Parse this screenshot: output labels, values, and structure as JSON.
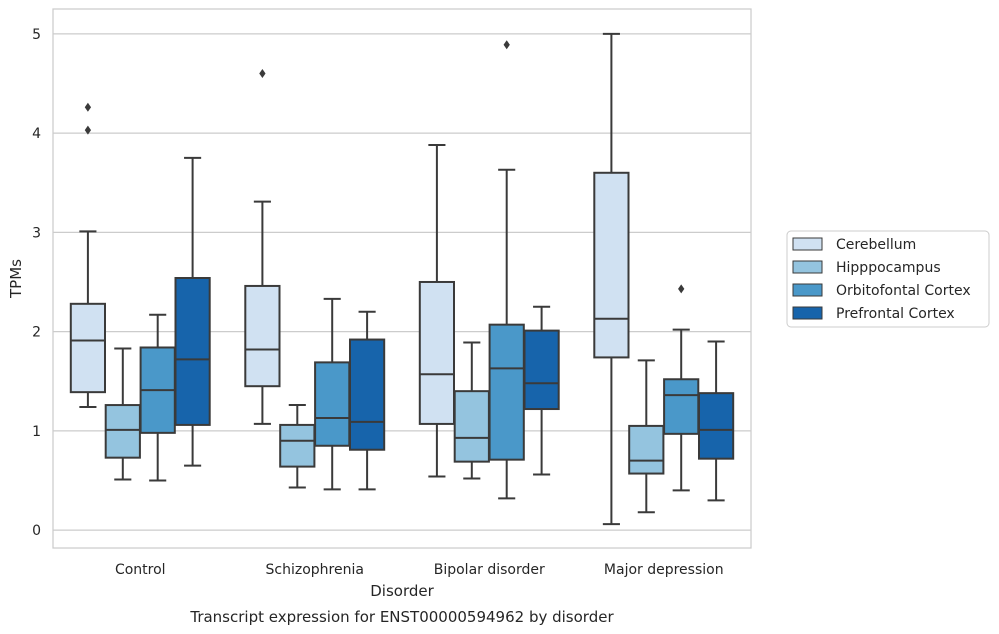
{
  "chart_data": {
    "type": "boxplot",
    "title": "Transcript expression for ENST00000594962 by disorder",
    "xlabel": "Disorder",
    "ylabel": "TPMs",
    "categories": [
      "Control",
      "Schizophrenia",
      "Bipolar disorder",
      "Major depression"
    ],
    "ylim": [
      -0.18,
      5.25
    ],
    "yticks": [
      0,
      1,
      2,
      3,
      4,
      5
    ],
    "grid": true,
    "legend_position": "outside right",
    "series": [
      {
        "name": "Cerebellum",
        "color": "#d0e1f2",
        "boxes": [
          {
            "whisker_low": 1.24,
            "q1": 1.39,
            "median": 1.91,
            "q3": 2.28,
            "whisker_high": 3.01,
            "outliers": [
              4.03,
              4.26
            ]
          },
          {
            "whisker_low": 1.07,
            "q1": 1.45,
            "median": 1.82,
            "q3": 2.46,
            "whisker_high": 3.31,
            "outliers": [
              4.6
            ]
          },
          {
            "whisker_low": 0.54,
            "q1": 1.07,
            "median": 1.57,
            "q3": 2.5,
            "whisker_high": 3.88,
            "outliers": []
          },
          {
            "whisker_low": 0.06,
            "q1": 1.74,
            "median": 2.13,
            "q3": 3.6,
            "whisker_high": 5.0,
            "outliers": []
          }
        ]
      },
      {
        "name": "Hipppocampus",
        "color": "#94c4df",
        "boxes": [
          {
            "whisker_low": 0.51,
            "q1": 0.73,
            "median": 1.01,
            "q3": 1.26,
            "whisker_high": 1.83,
            "outliers": []
          },
          {
            "whisker_low": 0.43,
            "q1": 0.64,
            "median": 0.9,
            "q3": 1.06,
            "whisker_high": 1.26,
            "outliers": []
          },
          {
            "whisker_low": 0.52,
            "q1": 0.69,
            "median": 0.93,
            "q3": 1.4,
            "whisker_high": 1.89,
            "outliers": []
          },
          {
            "whisker_low": 0.18,
            "q1": 0.57,
            "median": 0.7,
            "q3": 1.05,
            "whisker_high": 1.71,
            "outliers": []
          }
        ]
      },
      {
        "name": "Orbitofontal Cortex",
        "color": "#4a98c9",
        "boxes": [
          {
            "whisker_low": 0.5,
            "q1": 0.98,
            "median": 1.41,
            "q3": 1.84,
            "whisker_high": 2.17,
            "outliers": []
          },
          {
            "whisker_low": 0.41,
            "q1": 0.85,
            "median": 1.13,
            "q3": 1.69,
            "whisker_high": 2.33,
            "outliers": []
          },
          {
            "whisker_low": 0.32,
            "q1": 0.71,
            "median": 1.63,
            "q3": 2.07,
            "whisker_high": 3.63,
            "outliers": [
              4.89
            ]
          },
          {
            "whisker_low": 0.4,
            "q1": 0.97,
            "median": 1.36,
            "q3": 1.52,
            "whisker_high": 2.02,
            "outliers": [
              2.43
            ]
          }
        ]
      },
      {
        "name": "Prefrontal Cortex",
        "color": "#1764ab",
        "boxes": [
          {
            "whisker_low": 0.65,
            "q1": 1.06,
            "median": 1.72,
            "q3": 2.54,
            "whisker_high": 3.75,
            "outliers": []
          },
          {
            "whisker_low": 0.41,
            "q1": 0.81,
            "median": 1.09,
            "q3": 1.92,
            "whisker_high": 2.2,
            "outliers": []
          },
          {
            "whisker_low": 0.56,
            "q1": 1.22,
            "median": 1.48,
            "q3": 2.01,
            "whisker_high": 2.25,
            "outliers": []
          },
          {
            "whisker_low": 0.3,
            "q1": 0.72,
            "median": 1.01,
            "q3": 1.38,
            "whisker_high": 1.9,
            "outliers": []
          }
        ]
      }
    ]
  }
}
